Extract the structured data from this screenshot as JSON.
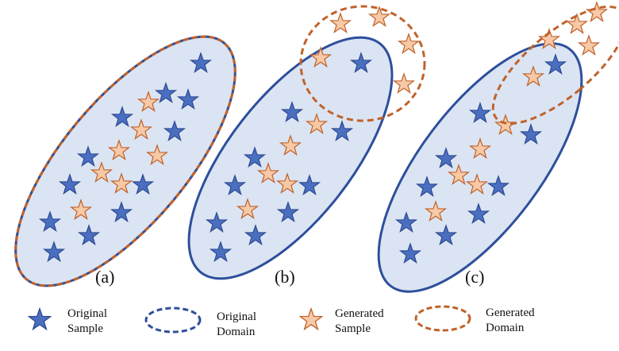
{
  "colors": {
    "original_fill": "#4b6fc0",
    "original_stroke": "#2e4b93",
    "generated_fill": "#f7c9a6",
    "generated_stroke": "#c0622b",
    "domain_fill": "#dbe4f3",
    "original_domain_stroke": "#2e4f9c",
    "generated_domain_stroke": "#c0622b"
  },
  "panels": [
    {
      "label": "(a)"
    },
    {
      "label": "(b)"
    },
    {
      "label": "(c)"
    }
  ],
  "legend": {
    "original_sample": {
      "line1": "Original",
      "line2": "Sample"
    },
    "original_domain": {
      "line1": "Original",
      "line2": "Domain"
    },
    "generated_sample": {
      "line1": "Generated",
      "line2": "Sample"
    },
    "generated_domain": {
      "line1": "Generated",
      "line2": "Domain"
    }
  }
}
